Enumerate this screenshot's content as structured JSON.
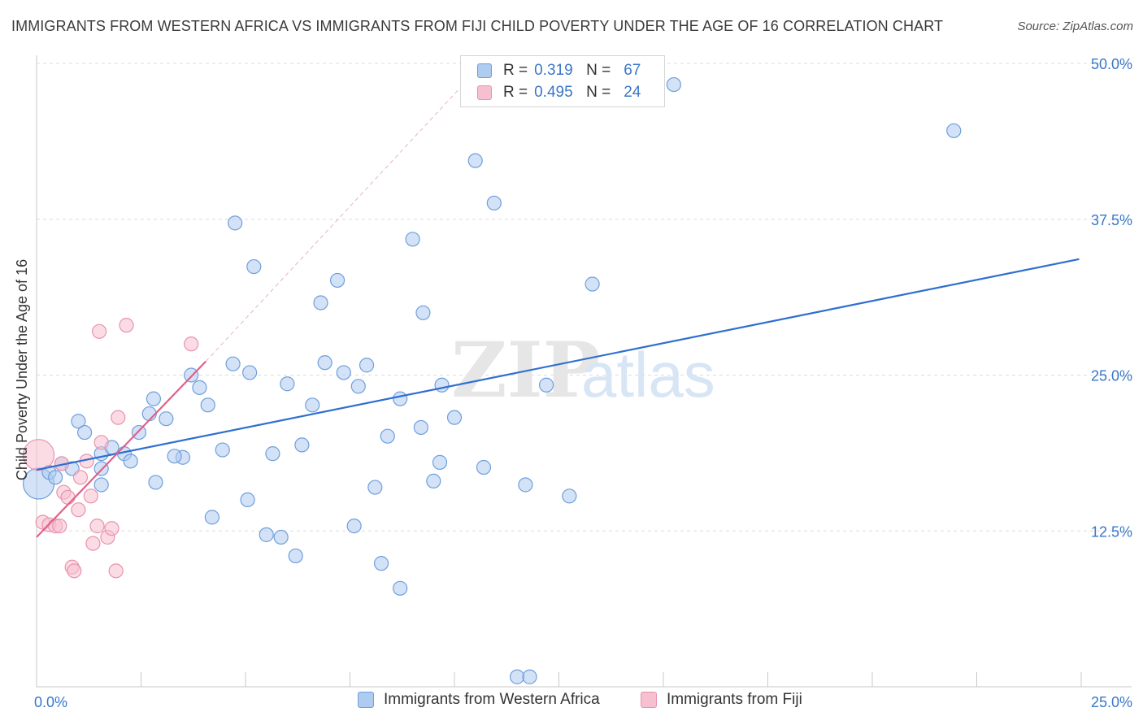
{
  "title": "IMMIGRANTS FROM WESTERN AFRICA VS IMMIGRANTS FROM FIJI CHILD POVERTY UNDER THE AGE OF 16 CORRELATION CHART",
  "source": "Source: ZipAtlas.com",
  "watermark": {
    "zip": "ZIP",
    "atlas": "atlas"
  },
  "legend": {
    "r_key": "R =",
    "n_key": "N =",
    "rows": [
      {
        "series": "Immigrants from Western Africa",
        "r": "0.319",
        "n": "67",
        "fill": "#aecbf0",
        "stroke": "#6f9fdc"
      },
      {
        "series": "Immigrants from Fiji",
        "r": "0.495",
        "n": "24",
        "fill": "#f7c0d0",
        "stroke": "#e893ad"
      }
    ]
  },
  "chart_data": {
    "type": "scatter",
    "title": "IMMIGRANTS FROM WESTERN AFRICA VS IMMIGRANTS FROM FIJI CHILD POVERTY UNDER THE AGE OF 16 CORRELATION CHART",
    "xlabel": "",
    "ylabel": "Child Poverty Under the Age of 16",
    "xlim": [
      0,
      25
    ],
    "ylim": [
      0,
      50
    ],
    "x_tick_labels": [
      {
        "value": 0,
        "label": "0.0%"
      },
      {
        "value": 25,
        "label": "25.0%"
      }
    ],
    "y_tick_labels": [
      {
        "value": 12.5,
        "label": "12.5%"
      },
      {
        "value": 25,
        "label": "25.0%"
      },
      {
        "value": 37.5,
        "label": "37.5%"
      },
      {
        "value": 50,
        "label": "50.0%"
      }
    ],
    "series": [
      {
        "name": "Immigrants from Western Africa",
        "color": "#6f9fdc",
        "fill": "#aecbf0",
        "trend_color": "#2e6fd0",
        "trend": {
          "x": [
            0,
            24.95
          ],
          "y": [
            17.4,
            34.3
          ]
        },
        "trend_dashed": false,
        "points": [
          {
            "x": 0.05,
            "y": 16.3,
            "big": true
          },
          {
            "x": 0.3,
            "y": 17.2
          },
          {
            "x": 0.45,
            "y": 16.8
          },
          {
            "x": 0.6,
            "y": 17.9
          },
          {
            "x": 0.85,
            "y": 17.5
          },
          {
            "x": 1.0,
            "y": 21.3
          },
          {
            "x": 1.15,
            "y": 20.4
          },
          {
            "x": 1.55,
            "y": 18.7
          },
          {
            "x": 1.8,
            "y": 19.2
          },
          {
            "x": 2.1,
            "y": 18.7
          },
          {
            "x": 2.25,
            "y": 18.1
          },
          {
            "x": 2.45,
            "y": 20.4
          },
          {
            "x": 1.55,
            "y": 17.5
          },
          {
            "x": 1.55,
            "y": 16.2
          },
          {
            "x": 2.7,
            "y": 21.9
          },
          {
            "x": 2.8,
            "y": 23.1
          },
          {
            "x": 3.1,
            "y": 21.5
          },
          {
            "x": 3.5,
            "y": 18.4
          },
          {
            "x": 3.7,
            "y": 25.0
          },
          {
            "x": 3.9,
            "y": 24.0
          },
          {
            "x": 4.1,
            "y": 22.6
          },
          {
            "x": 4.45,
            "y": 19.0
          },
          {
            "x": 4.7,
            "y": 25.9
          },
          {
            "x": 5.1,
            "y": 25.2
          },
          {
            "x": 4.75,
            "y": 37.2
          },
          {
            "x": 5.2,
            "y": 33.7
          },
          {
            "x": 5.65,
            "y": 18.7
          },
          {
            "x": 6.0,
            "y": 24.3
          },
          {
            "x": 6.35,
            "y": 19.4
          },
          {
            "x": 6.6,
            "y": 22.6
          },
          {
            "x": 6.8,
            "y": 30.8
          },
          {
            "x": 6.9,
            "y": 26.0
          },
          {
            "x": 7.2,
            "y": 32.6
          },
          {
            "x": 7.35,
            "y": 25.2
          },
          {
            "x": 7.7,
            "y": 24.1
          },
          {
            "x": 7.9,
            "y": 25.8
          },
          {
            "x": 8.1,
            "y": 16.0
          },
          {
            "x": 8.4,
            "y": 20.1
          },
          {
            "x": 8.7,
            "y": 23.1
          },
          {
            "x": 9.0,
            "y": 35.9
          },
          {
            "x": 9.25,
            "y": 30.0
          },
          {
            "x": 9.5,
            "y": 16.5
          },
          {
            "x": 9.7,
            "y": 24.2
          },
          {
            "x": 9.65,
            "y": 18.0
          },
          {
            "x": 10.0,
            "y": 21.6
          },
          {
            "x": 10.5,
            "y": 42.2
          },
          {
            "x": 10.7,
            "y": 17.6
          },
          {
            "x": 10.95,
            "y": 38.8
          },
          {
            "x": 11.7,
            "y": 16.2
          },
          {
            "x": 12.2,
            "y": 24.2
          },
          {
            "x": 12.75,
            "y": 15.3
          },
          {
            "x": 13.3,
            "y": 32.3
          },
          {
            "x": 15.25,
            "y": 48.3
          },
          {
            "x": 21.95,
            "y": 44.6
          },
          {
            "x": 2.85,
            "y": 16.4
          },
          {
            "x": 3.3,
            "y": 18.5
          },
          {
            "x": 4.2,
            "y": 13.6
          },
          {
            "x": 5.05,
            "y": 15.0
          },
          {
            "x": 5.5,
            "y": 12.2
          },
          {
            "x": 5.85,
            "y": 12.0
          },
          {
            "x": 6.2,
            "y": 10.5
          },
          {
            "x": 7.6,
            "y": 12.9
          },
          {
            "x": 8.25,
            "y": 9.9
          },
          {
            "x": 8.7,
            "y": 7.9
          },
          {
            "x": 11.5,
            "y": 0.8
          },
          {
            "x": 11.8,
            "y": 0.8
          },
          {
            "x": 9.2,
            "y": 20.8
          }
        ]
      },
      {
        "name": "Immigrants from Fiji",
        "color": "#e893ad",
        "fill": "#f7c0d0",
        "trend_color": "#e0608a",
        "trend": {
          "x": [
            0,
            4.05
          ],
          "y": [
            12.0,
            26.1
          ]
        },
        "trend_extension": {
          "x": [
            4.05,
            10.1
          ],
          "y": [
            26.1,
            47.9
          ]
        },
        "points": [
          {
            "x": 0.05,
            "y": 18.6,
            "big": true
          },
          {
            "x": 0.15,
            "y": 13.2
          },
          {
            "x": 0.3,
            "y": 13.0
          },
          {
            "x": 0.45,
            "y": 12.9
          },
          {
            "x": 0.6,
            "y": 17.9
          },
          {
            "x": 0.65,
            "y": 15.6
          },
          {
            "x": 0.75,
            "y": 15.2
          },
          {
            "x": 0.85,
            "y": 9.6
          },
          {
            "x": 0.9,
            "y": 9.3
          },
          {
            "x": 1.0,
            "y": 14.2
          },
          {
            "x": 1.05,
            "y": 16.8
          },
          {
            "x": 1.2,
            "y": 18.1
          },
          {
            "x": 1.3,
            "y": 15.3
          },
          {
            "x": 1.35,
            "y": 11.5
          },
          {
            "x": 1.45,
            "y": 12.9
          },
          {
            "x": 1.5,
            "y": 28.5
          },
          {
            "x": 1.55,
            "y": 19.6
          },
          {
            "x": 1.7,
            "y": 12.0
          },
          {
            "x": 1.8,
            "y": 12.7
          },
          {
            "x": 1.9,
            "y": 9.3
          },
          {
            "x": 1.95,
            "y": 21.6
          },
          {
            "x": 2.15,
            "y": 29.0
          },
          {
            "x": 3.7,
            "y": 27.5
          },
          {
            "x": 0.55,
            "y": 12.9
          }
        ]
      }
    ]
  }
}
